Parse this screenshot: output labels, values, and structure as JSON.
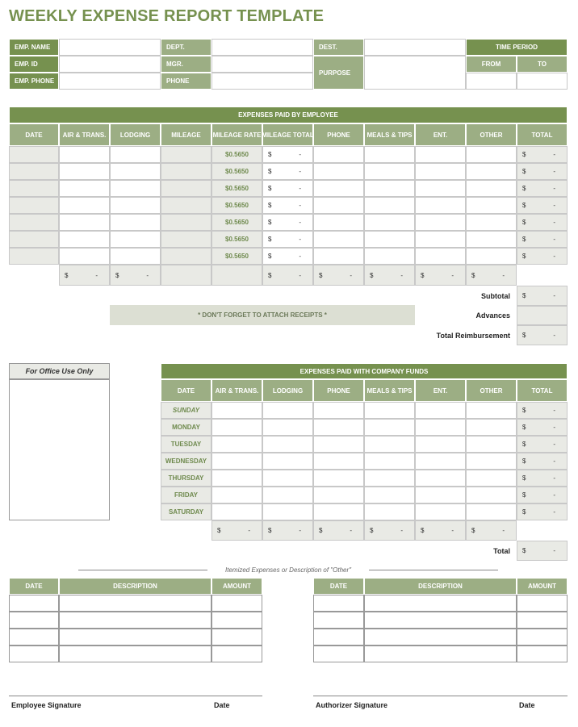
{
  "title": "WEEKLY EXPENSE REPORT TEMPLATE",
  "info": {
    "emp_name": "EMP. NAME",
    "emp_id": "EMP. ID",
    "emp_phone": "EMP. PHONE",
    "dept": "DEPT.",
    "mgr": "MGR.",
    "phone": "PHONE",
    "dest": "DEST.",
    "purpose": "PURPOSE",
    "time_period": "TIME PERIOD",
    "from": "FROM",
    "to": "TO"
  },
  "currency": "$",
  "dash": "-",
  "employee_expenses": {
    "title": "EXPENSES PAID BY EMPLOYEE",
    "columns": [
      "DATE",
      "AIR & TRANS.",
      "LODGING",
      "MILEAGE",
      "MILEAGE RATE",
      "MILEAGE TOTAL",
      "PHONE",
      "MEALS & TIPS",
      "ENT.",
      "OTHER",
      "TOTAL"
    ],
    "mileage_rates": [
      "$0.5650",
      "$0.5650",
      "$0.5650",
      "$0.5650",
      "$0.5650",
      "$0.5650",
      "$0.5650"
    ]
  },
  "summary": {
    "subtotal": "Subtotal",
    "advances": "Advances",
    "total_reimbursement": "Total Reimbursement"
  },
  "receipts_note": "* DON'T FORGET TO ATTACH RECEIPTS *",
  "office_use": "For Office Use Only",
  "company_expenses": {
    "title": "EXPENSES PAID WITH COMPANY FUNDS",
    "columns": [
      "DATE",
      "AIR & TRANS.",
      "LODGING",
      "PHONE",
      "MEALS & TIPS",
      "ENT.",
      "OTHER",
      "TOTAL"
    ],
    "days": [
      "SUNDAY",
      "MONDAY",
      "TUESDAY",
      "WEDNESDAY",
      "THURSDAY",
      "FRIDAY",
      "SATURDAY"
    ],
    "total_label": "Total"
  },
  "itemized": {
    "caption": "Itemized Expenses or Description of \"Other\"",
    "columns": [
      "DATE",
      "DESCRIPTION",
      "AMOUNT"
    ]
  },
  "signatures": {
    "employee": "Employee Signature",
    "employee_date": "Date",
    "authorizer": "Authorizer Signature",
    "authorizer_date": "Date"
  }
}
